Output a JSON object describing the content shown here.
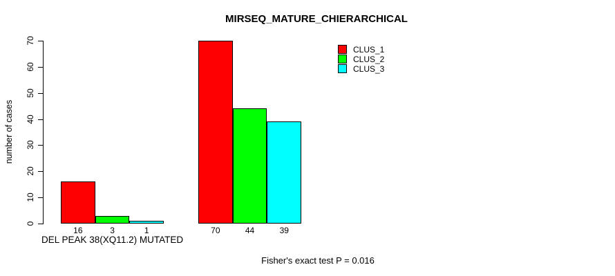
{
  "page": {
    "background_color": "#FFFFFF",
    "text_color": "#000000"
  },
  "chart_data": {
    "type": "bar",
    "title": "MIRSEQ_MATURE_CHIERARCHICAL",
    "ylabel": "number of cases",
    "xlabel": "",
    "footer": "Fisher's exact test P = 0.016",
    "ylim": [
      0,
      70
    ],
    "yticks": [
      0,
      10,
      20,
      30,
      40,
      50,
      60,
      70
    ],
    "grid": false,
    "bar_border_color": "#000000",
    "series": [
      {
        "name": "CLUS_1",
        "color": "#FF0000"
      },
      {
        "name": "CLUS_2",
        "color": "#00FF00"
      },
      {
        "name": "CLUS_3",
        "color": "#00FFFF"
      }
    ],
    "categories": [
      "DEL PEAK 38(XQ11.2) MUTATED",
      ""
    ],
    "groups": [
      {
        "label": "DEL PEAK 38(XQ11.2) MUTATED",
        "values": [
          16,
          3,
          1
        ],
        "value_labels": [
          "16",
          "3",
          "1"
        ]
      },
      {
        "label": "",
        "values": [
          70,
          44,
          39
        ],
        "value_labels": [
          "70",
          "44",
          "39"
        ]
      }
    ],
    "legend": {
      "position": "top-right",
      "entries": [
        "CLUS_1",
        "CLUS_2",
        "CLUS_3"
      ]
    }
  }
}
